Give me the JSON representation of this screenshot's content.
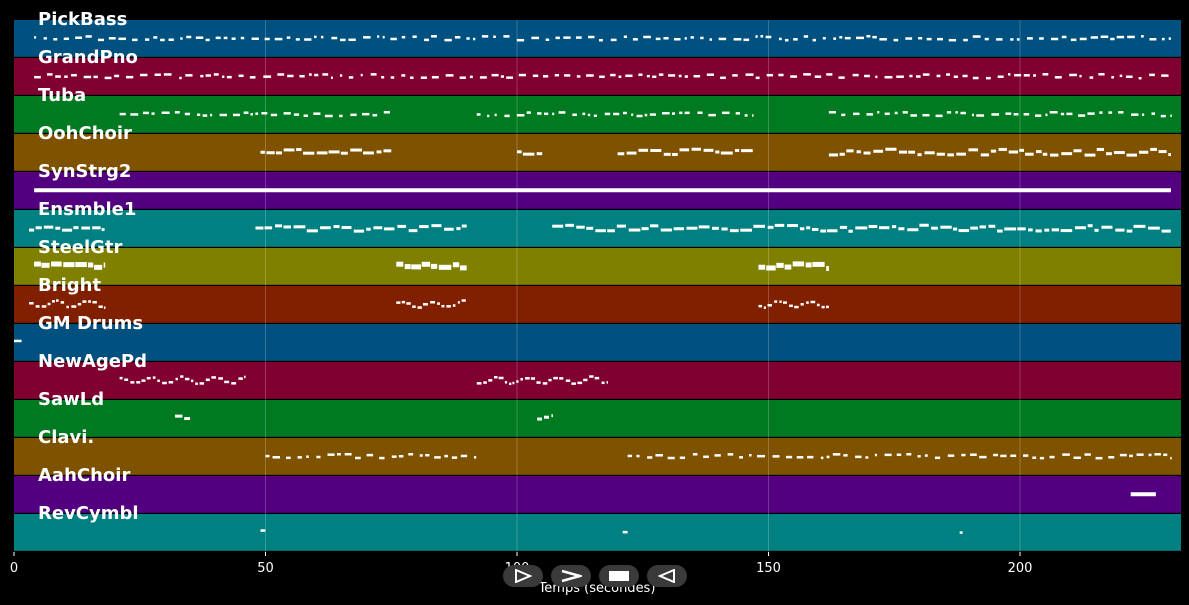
{
  "axis": {
    "xlabel": "Temps (secondes)",
    "xlim": [
      0,
      232
    ],
    "ticks": [
      "0",
      "50",
      "100",
      "150",
      "200"
    ],
    "tick_values": [
      0,
      50,
      100,
      150,
      200
    ]
  },
  "tracks": [
    {
      "name": "PickBass",
      "color": "#005080",
      "segments": [
        [
          4,
          230
        ]
      ],
      "style": "sparse"
    },
    {
      "name": "GrandPno",
      "color": "#800030",
      "segments": [
        [
          4,
          230
        ]
      ],
      "style": "sparse"
    },
    {
      "name": "Tuba",
      "color": "#007a20",
      "segments": [
        [
          21,
          75
        ],
        [
          92,
          147
        ],
        [
          162,
          230
        ]
      ],
      "style": "sparse"
    },
    {
      "name": "OohChoir",
      "color": "#7f5200",
      "segments": [
        [
          49,
          75
        ],
        [
          100,
          105
        ],
        [
          120,
          147
        ],
        [
          162,
          230
        ]
      ],
      "style": "dense"
    },
    {
      "name": "SynStrg2",
      "color": "#52007f",
      "segments": [
        [
          4,
          230
        ]
      ],
      "style": "solid"
    },
    {
      "name": "Ensmble1",
      "color": "#008080",
      "segments": [
        [
          3,
          18
        ],
        [
          48,
          90
        ],
        [
          107,
          230
        ]
      ],
      "style": "dense"
    },
    {
      "name": "SteelGtr",
      "color": "#808000",
      "segments": [
        [
          4,
          18
        ],
        [
          76,
          90
        ],
        [
          148,
          162
        ]
      ],
      "style": "thick"
    },
    {
      "name": "Bright",
      "color": "#802000",
      "segments": [
        [
          3,
          18
        ],
        [
          76,
          90
        ],
        [
          148,
          162
        ]
      ],
      "style": "wavy"
    },
    {
      "name": "GM Drums",
      "color": "#005080",
      "segments": [
        [
          0,
          2
        ]
      ],
      "style": "sparse"
    },
    {
      "name": "NewAgePd",
      "color": "#800030",
      "segments": [
        [
          21,
          46
        ],
        [
          92,
          118
        ]
      ],
      "style": "wavy"
    },
    {
      "name": "SawLd",
      "color": "#007a20",
      "segments": [
        [
          32,
          35
        ],
        [
          104,
          107
        ]
      ],
      "style": "dense"
    },
    {
      "name": "Clavi.",
      "color": "#7f5200",
      "segments": [
        [
          50,
          92
        ],
        [
          122,
          230
        ]
      ],
      "style": "sparse"
    },
    {
      "name": "AahChoir",
      "color": "#52007f",
      "segments": [
        [
          222,
          227
        ]
      ],
      "style": "solid"
    },
    {
      "name": "RevCymbl",
      "color": "#008080",
      "segments": [
        [
          49,
          50
        ],
        [
          121,
          122
        ],
        [
          188,
          189
        ]
      ],
      "style": "sparse"
    }
  ],
  "controls": [
    {
      "name": "play-forward-button",
      "icon": "play-outline-icon"
    },
    {
      "name": "next-button",
      "icon": "chevron-right-icon"
    },
    {
      "name": "stop-button",
      "icon": "stop-icon"
    },
    {
      "name": "play-backward-button",
      "icon": "play-backward-icon"
    }
  ]
}
